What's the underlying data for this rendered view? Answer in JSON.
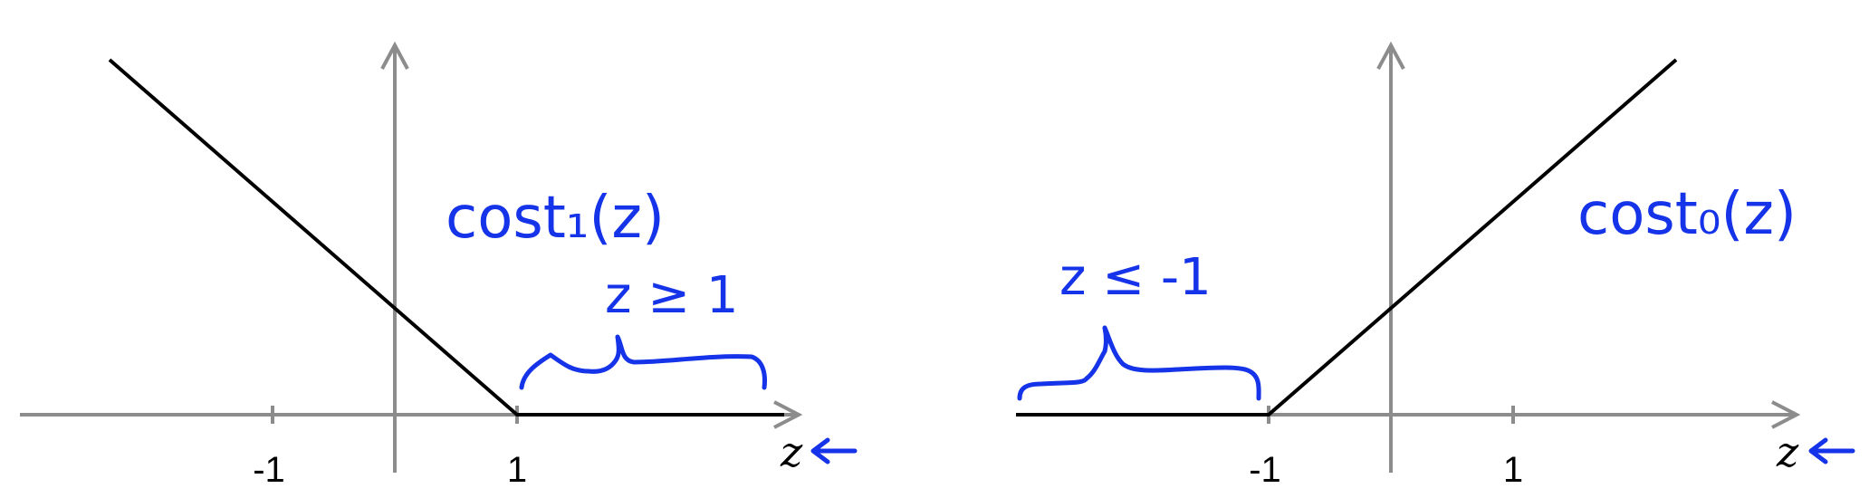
{
  "left_plot": {
    "tick_labels": [
      "-1",
      "1"
    ],
    "x_axis_label": "z",
    "annotation": "cost₁(z)",
    "range_label": "z ≥ 1"
  },
  "right_plot": {
    "tick_labels": [
      "-1",
      "1"
    ],
    "x_axis_label": "z",
    "annotation": "cost₀(z)",
    "range_label": "z ≤ -1"
  },
  "colors": {
    "axis": "#8c8c8c",
    "curve": "#000000",
    "annotation_ink": "#1533e8"
  }
}
